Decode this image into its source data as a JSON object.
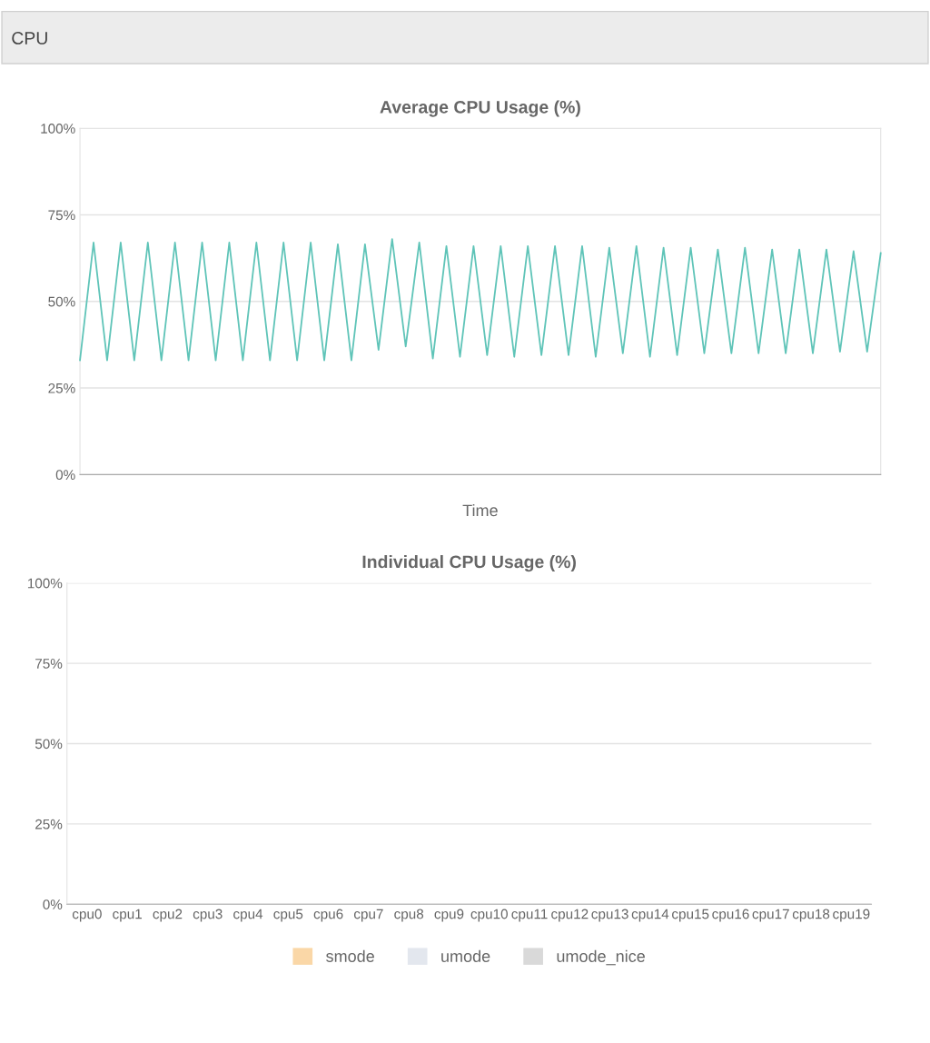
{
  "chart_data": [
    {
      "type": "line",
      "title": "Average CPU Usage (%)",
      "xlabel": "Time",
      "annotations": [
        "CPU"
      ],
      "grid": "y",
      "legend": false,
      "marker": "none",
      "line_style": "solid",
      "categories": [
        null,
        null,
        null,
        null,
        null,
        null,
        null,
        null,
        null,
        null,
        null,
        null,
        null,
        null,
        null,
        null,
        null,
        null,
        null,
        null,
        null,
        null,
        null,
        null,
        null,
        null,
        null,
        null,
        null,
        null,
        null,
        null,
        null,
        null,
        null,
        null,
        null,
        null,
        null,
        null,
        null,
        null,
        null,
        null,
        null,
        null,
        null,
        null,
        null,
        null,
        null,
        null,
        null,
        null,
        null,
        null,
        null,
        null,
        null,
        null
      ],
      "series": [
        {
          "color": "#5fc4b8",
          "values": [
            33,
            67,
            33,
            67,
            33,
            67,
            33,
            67,
            33,
            67,
            33,
            67,
            33,
            67,
            33,
            67,
            33,
            67,
            33,
            66.5,
            33,
            66.5,
            36,
            68,
            37,
            67,
            33.5,
            66,
            34,
            66,
            34.5,
            66,
            34,
            66,
            34.5,
            66,
            34.5,
            66,
            34,
            65.5,
            35,
            66,
            34,
            65.5,
            34.5,
            65.5,
            35,
            65,
            35,
            65.5,
            35,
            65,
            35,
            65,
            35,
            65,
            35.5,
            64.5,
            35.5,
            64
          ]
        }
      ],
      "ylim": [
        0,
        100
      ],
      "yticks": [
        {
          "value": 0,
          "label": "0%"
        },
        {
          "value": 25,
          "label": "25%"
        },
        {
          "value": 50,
          "label": "50%"
        },
        {
          "value": 75,
          "label": "75%"
        },
        {
          "value": 100,
          "label": "100%"
        }
      ]
    },
    {
      "type": "bar",
      "title": "Individual CPU Usage (%)",
      "grid": "y",
      "legend": "bottom",
      "categories": [
        "cpu0",
        "cpu1",
        "cpu2",
        "cpu3",
        "cpu4",
        "cpu5",
        "cpu6",
        "cpu7",
        "cpu8",
        "cpu9",
        "cpu10",
        "cpu11",
        "cpu12",
        "cpu13",
        "cpu14",
        "cpu15",
        "cpu16",
        "cpu17",
        "cpu18",
        "cpu19"
      ],
      "series": [
        {
          "name": "smode",
          "color": "#fad7a7",
          "values": [
            0,
            0,
            0,
            0,
            0,
            0,
            0,
            0,
            0,
            0,
            0,
            0,
            0,
            0,
            0,
            0,
            0,
            0,
            0,
            0
          ]
        },
        {
          "name": "umode",
          "color": "#e3e7ee",
          "values": [
            0,
            0,
            0,
            0,
            0,
            0,
            0,
            0,
            0,
            0,
            0,
            0,
            0,
            0,
            0,
            0,
            0,
            0,
            0,
            0
          ]
        },
        {
          "name": "umode_nice",
          "color": "#d9d9d9",
          "values": [
            0,
            0,
            0,
            0,
            0,
            0,
            0,
            0,
            0,
            0,
            0,
            0,
            0,
            0,
            0,
            0,
            0,
            0,
            0,
            0
          ]
        }
      ],
      "ylim": [
        0,
        100
      ],
      "yticks": [
        {
          "value": 0,
          "label": "0%"
        },
        {
          "value": 25,
          "label": "25%"
        },
        {
          "value": 50,
          "label": "50%"
        },
        {
          "value": 75,
          "label": "75%"
        },
        {
          "value": 100,
          "label": "100%"
        }
      ]
    }
  ]
}
